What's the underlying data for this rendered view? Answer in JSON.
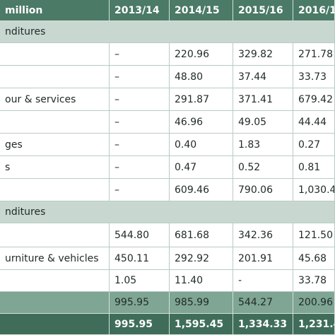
{
  "table": {
    "header": [
      " million",
      "2013/14",
      "2014/15",
      "2015/16",
      "2016/1"
    ],
    "rows": [
      [
        "nditures"
      ],
      [
        null,
        "–",
        "220.96",
        "329.82",
        "271.78"
      ],
      [
        null,
        "–",
        "48.80",
        "37.44",
        "33.73"
      ],
      [
        "our & services",
        "–",
        "291.87",
        "371.41",
        "679.42"
      ],
      [
        null,
        "–",
        "46.96",
        "49.05",
        "44.44"
      ],
      [
        "ges",
        "–",
        "0.40",
        "1.83",
        "0.27"
      ],
      [
        "s",
        "–",
        "0.47",
        "0.52",
        "0.81"
      ],
      [
        null,
        "–",
        "609.46",
        "790.06",
        "1,030.4"
      ],
      [
        "nditures"
      ],
      [
        null,
        "544.80",
        "681.68",
        "342.36",
        "121.50"
      ],
      [
        "urniture & vehicles",
        "450.11",
        "292.92",
        "201.91",
        "45.68"
      ],
      [
        null,
        "1.05",
        "11.40",
        "-",
        "33.78"
      ],
      [
        null,
        "995.95",
        "985.99",
        "544.27",
        "200.96"
      ],
      [
        null,
        "995.95",
        "1,595.45",
        "1,334.33",
        "1,231.4"
      ]
    ]
  }
}
